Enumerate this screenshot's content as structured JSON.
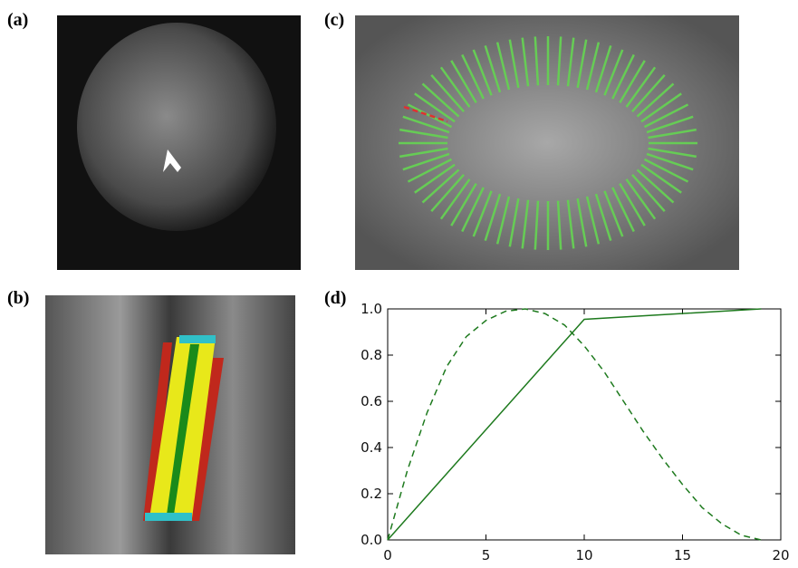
{
  "panels": {
    "a": "(a)",
    "b": "(b)",
    "c": "(c)",
    "d": "(d)"
  },
  "chart_data": {
    "type": "line",
    "xlim": [
      0,
      20
    ],
    "xticks": [
      0,
      5,
      10,
      15,
      20
    ],
    "ylim": [
      0,
      1
    ],
    "yticks": [
      {
        "value": 0,
        "label": "0.0"
      },
      0.2,
      0.4,
      0.6,
      0.8,
      {
        "value": 1,
        "label": "1.0"
      }
    ],
    "series": [
      {
        "color": "#1e7a1e",
        "dashed": false,
        "x": [
          0,
          10,
          19
        ],
        "values": [
          0,
          0.955,
          1.0
        ]
      },
      {
        "color": "#1e7a1e",
        "dashed": true,
        "x": [
          0,
          1,
          2,
          3,
          4,
          5,
          6,
          7,
          8,
          9,
          10,
          11,
          12,
          13,
          14,
          15,
          16,
          17,
          18,
          19
        ],
        "values": [
          0,
          0.3,
          0.55,
          0.75,
          0.88,
          0.95,
          0.99,
          1.0,
          0.98,
          0.93,
          0.84,
          0.73,
          0.6,
          0.47,
          0.35,
          0.24,
          0.14,
          0.07,
          0.02,
          0
        ]
      }
    ]
  }
}
